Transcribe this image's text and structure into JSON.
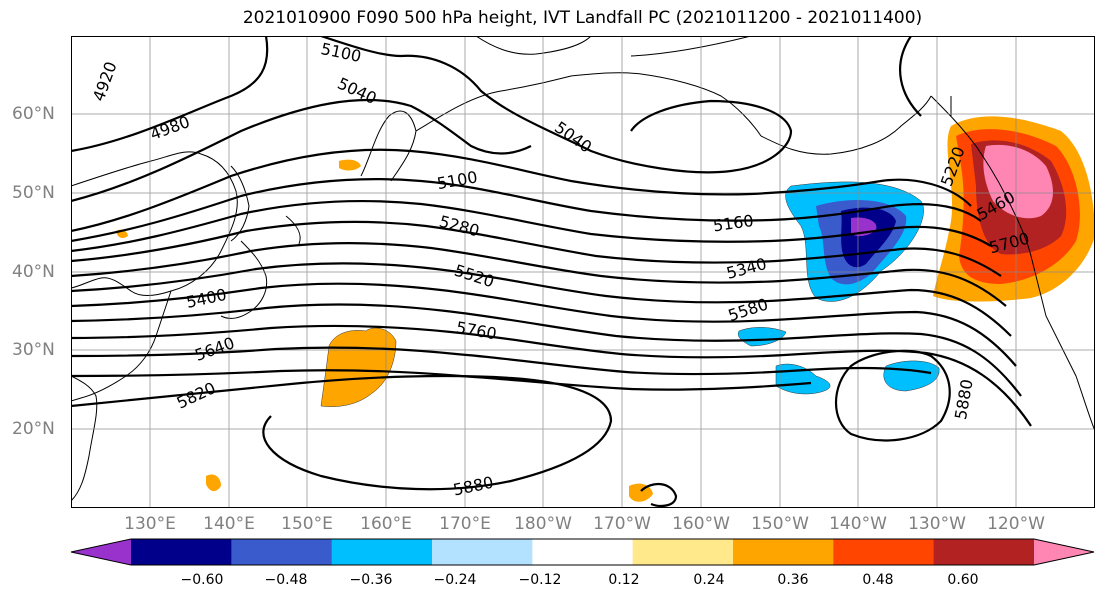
{
  "title": "2021010900 F090 500 hPa height, IVT Landfall PC (2021011200 - 2021011400)",
  "lat_labels": [
    "60°N",
    "50°N",
    "40°N",
    "30°N",
    "20°N"
  ],
  "lon_labels": [
    "130°E",
    "140°E",
    "150°E",
    "160°E",
    "170°E",
    "180°W",
    "170°W",
    "160°W",
    "150°W",
    "140°W",
    "130°W",
    "120°W"
  ],
  "contour_labels": [
    "4920",
    "4980",
    "5100",
    "5040",
    "5040",
    "5100",
    "5160",
    "5280",
    "5340",
    "5400",
    "5520",
    "5580",
    "5640",
    "5760",
    "5820",
    "5880",
    "5880",
    "5700",
    "5220",
    "5460"
  ],
  "colorbar": {
    "ticks": [
      "−0.60",
      "−0.48",
      "−0.36",
      "−0.24",
      "−0.12",
      "0.12",
      "0.24",
      "0.36",
      "0.48",
      "0.60"
    ],
    "colors": [
      "#9932cc",
      "#00008b",
      "#3a5bcc",
      "#00bfff",
      "#b2e2ff",
      "#ffffff",
      "#ffe98a",
      "#ffa500",
      "#ff4500",
      "#b22222",
      "#ff85b3"
    ]
  }
}
